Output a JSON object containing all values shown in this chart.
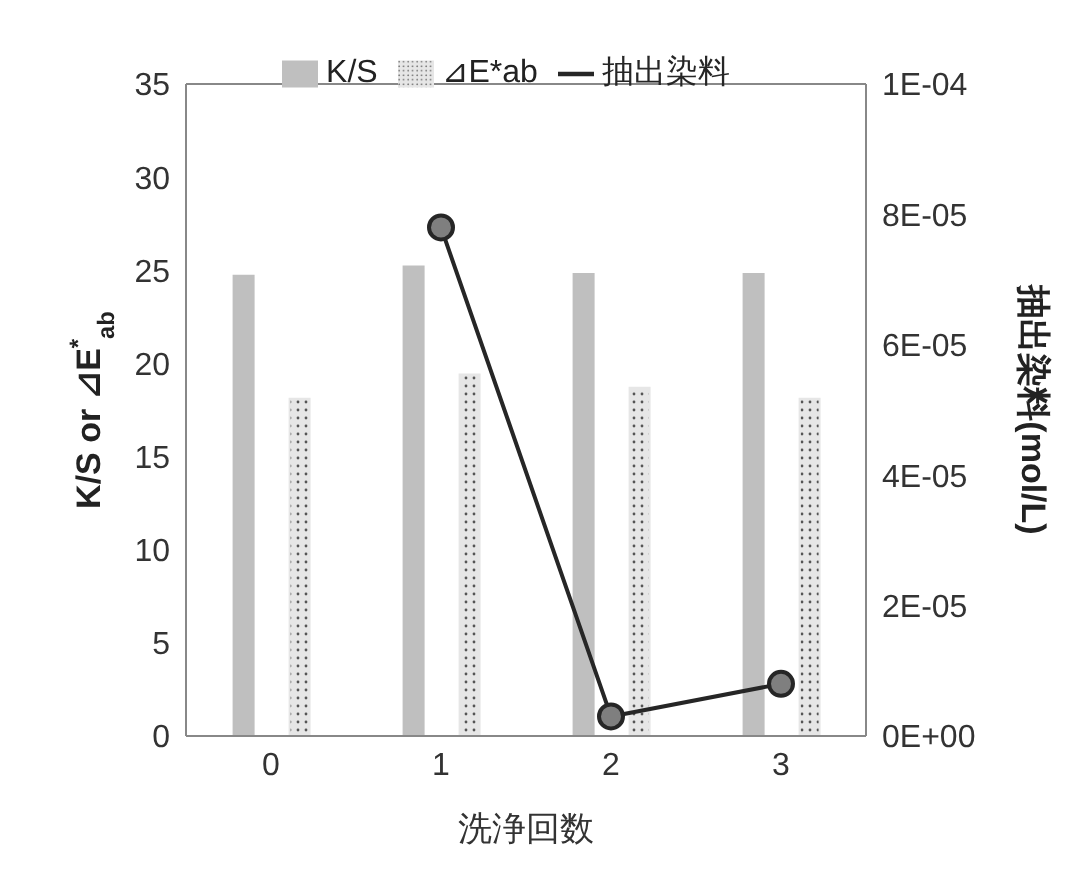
{
  "chart_data": {
    "type": "bar",
    "xlabel": "洗浄回数",
    "ylabel": "K/S  or  ⊿E$^{*}$$_{ab}$",
    "y2label": "抽出染料(mol/L)",
    "categories": [
      "0",
      "1",
      "2",
      "3"
    ],
    "series": [
      {
        "name": "K/S",
        "color": "#bfbfbf",
        "values": [
          24.7,
          25.2,
          24.8,
          24.8
        ]
      },
      {
        "name": "⊿E*ab",
        "color": "#e6e6e6",
        "values": [
          18.1,
          19.4,
          18.7,
          18.1
        ]
      },
      {
        "name": "抽出染料",
        "type": "line",
        "axis": "y2",
        "color": "#262626",
        "marker": "circle",
        "values": [
          null,
          7.8e-05,
          3e-06,
          8e-06
        ]
      }
    ],
    "ylim": [
      0,
      35
    ],
    "yticks": [
      0,
      5,
      10,
      15,
      20,
      25,
      30,
      35
    ],
    "y2lim": [
      0,
      0.0001
    ],
    "y2ticks": [
      {
        "value": 0,
        "label": "0E+00"
      },
      {
        "value": 2e-05,
        "label": "2E-05"
      },
      {
        "value": 4e-05,
        "label": "4E-05"
      },
      {
        "value": 6e-05,
        "label": "6E-05"
      },
      {
        "value": 8e-05,
        "label": "8E-05"
      },
      {
        "value": 0.0001,
        "label": "1E-04"
      }
    ],
    "grid": false,
    "legend": "top"
  }
}
